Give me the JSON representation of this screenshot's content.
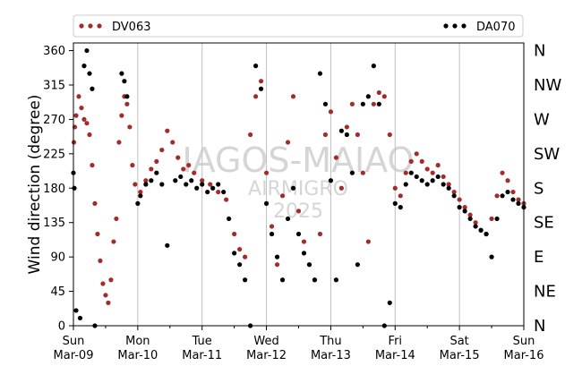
{
  "chart_data": {
    "type": "scatter",
    "title": "",
    "xlabel": "",
    "ylabel": "Wind direction (degree)",
    "ylim": [
      0,
      370
    ],
    "yticks": [
      0,
      45,
      90,
      135,
      180,
      225,
      270,
      315,
      360
    ],
    "xlim": [
      "2025-03-09",
      "2025-03-16"
    ],
    "xticks": [
      {
        "day": "Sun",
        "date": "Mar-09"
      },
      {
        "day": "Mon",
        "date": "Mar-10"
      },
      {
        "day": "Tue",
        "date": "Mar-11"
      },
      {
        "day": "Wed",
        "date": "Mar-12"
      },
      {
        "day": "Thu",
        "date": "Mar-13"
      },
      {
        "day": "Fri",
        "date": "Mar-14"
      },
      {
        "day": "Sat",
        "date": "Mar-15"
      },
      {
        "day": "Sun",
        "date": "Mar-16"
      }
    ],
    "compass_labels": [
      {
        "label": "N",
        "value": 0
      },
      {
        "label": "NE",
        "value": 45
      },
      {
        "label": "E",
        "value": 90
      },
      {
        "label": "SE",
        "value": 135
      },
      {
        "label": "S",
        "value": 180
      },
      {
        "label": "SW",
        "value": 225
      },
      {
        "label": "W",
        "value": 270
      },
      {
        "label": "NW",
        "value": 315
      },
      {
        "label": "N",
        "value": 360
      }
    ],
    "grid": "vertical",
    "legend_position": "top",
    "watermark": [
      "IAGOS-MAIAO",
      "AIRMIGRO",
      "2025"
    ],
    "series": [
      {
        "name": "DV063",
        "color": "#a52a2a",
        "points": [
          [
            "2025-03-09T00:10",
            240
          ],
          [
            "2025-03-09T00:30",
            260
          ],
          [
            "2025-03-09T01:00",
            275
          ],
          [
            "2025-03-09T02:00",
            300
          ],
          [
            "2025-03-09T03:00",
            285
          ],
          [
            "2025-03-09T04:00",
            270
          ],
          [
            "2025-03-09T05:00",
            265
          ],
          [
            "2025-03-09T06:00",
            250
          ],
          [
            "2025-03-09T07:00",
            210
          ],
          [
            "2025-03-09T08:00",
            160
          ],
          [
            "2025-03-09T09:00",
            120
          ],
          [
            "2025-03-09T10:00",
            85
          ],
          [
            "2025-03-09T11:00",
            55
          ],
          [
            "2025-03-09T12:00",
            40
          ],
          [
            "2025-03-09T13:00",
            30
          ],
          [
            "2025-03-09T14:00",
            60
          ],
          [
            "2025-03-09T15:00",
            110
          ],
          [
            "2025-03-09T16:00",
            140
          ],
          [
            "2025-03-09T17:00",
            240
          ],
          [
            "2025-03-09T18:00",
            275
          ],
          [
            "2025-03-09T19:00",
            300
          ],
          [
            "2025-03-09T20:00",
            290
          ],
          [
            "2025-03-09T21:00",
            260
          ],
          [
            "2025-03-09T22:00",
            210
          ],
          [
            "2025-03-09T23:00",
            185
          ],
          [
            "2025-03-10T01:00",
            175
          ],
          [
            "2025-03-10T03:00",
            190
          ],
          [
            "2025-03-10T05:00",
            205
          ],
          [
            "2025-03-10T07:00",
            215
          ],
          [
            "2025-03-10T09:00",
            230
          ],
          [
            "2025-03-10T11:00",
            255
          ],
          [
            "2025-03-10T13:00",
            240
          ],
          [
            "2025-03-10T15:00",
            220
          ],
          [
            "2025-03-10T17:00",
            205
          ],
          [
            "2025-03-10T19:00",
            210
          ],
          [
            "2025-03-10T21:00",
            200
          ],
          [
            "2025-03-11T00:00",
            190
          ],
          [
            "2025-03-11T03:00",
            185
          ],
          [
            "2025-03-11T06:00",
            175
          ],
          [
            "2025-03-11T09:00",
            165
          ],
          [
            "2025-03-11T12:00",
            120
          ],
          [
            "2025-03-11T14:00",
            100
          ],
          [
            "2025-03-11T16:00",
            90
          ],
          [
            "2025-03-11T18:00",
            250
          ],
          [
            "2025-03-11T20:00",
            300
          ],
          [
            "2025-03-11T22:00",
            320
          ],
          [
            "2025-03-12T00:00",
            200
          ],
          [
            "2025-03-12T02:00",
            130
          ],
          [
            "2025-03-12T04:00",
            80
          ],
          [
            "2025-03-12T06:00",
            170
          ],
          [
            "2025-03-12T08:00",
            240
          ],
          [
            "2025-03-12T10:00",
            300
          ],
          [
            "2025-03-12T12:00",
            150
          ],
          [
            "2025-03-12T14:00",
            110
          ],
          [
            "2025-03-12T16:00",
            80
          ],
          [
            "2025-03-12T18:00",
            60
          ],
          [
            "2025-03-12T20:00",
            120
          ],
          [
            "2025-03-12T22:00",
            250
          ],
          [
            "2025-03-13T00:00",
            280
          ],
          [
            "2025-03-13T02:00",
            220
          ],
          [
            "2025-03-13T04:00",
            180
          ],
          [
            "2025-03-13T06:00",
            260
          ],
          [
            "2025-03-13T08:00",
            290
          ],
          [
            "2025-03-13T10:00",
            250
          ],
          [
            "2025-03-13T12:00",
            200
          ],
          [
            "2025-03-13T14:00",
            110
          ],
          [
            "2025-03-13T16:00",
            290
          ],
          [
            "2025-03-13T18:00",
            305
          ],
          [
            "2025-03-13T20:00",
            300
          ],
          [
            "2025-03-13T22:00",
            250
          ],
          [
            "2025-03-14T00:00",
            180
          ],
          [
            "2025-03-14T02:00",
            170
          ],
          [
            "2025-03-14T04:00",
            200
          ],
          [
            "2025-03-14T06:00",
            215
          ],
          [
            "2025-03-14T08:00",
            225
          ],
          [
            "2025-03-14T10:00",
            215
          ],
          [
            "2025-03-14T12:00",
            205
          ],
          [
            "2025-03-14T14:00",
            200
          ],
          [
            "2025-03-14T16:00",
            210
          ],
          [
            "2025-03-14T18:00",
            195
          ],
          [
            "2025-03-14T20:00",
            185
          ],
          [
            "2025-03-14T22:00",
            175
          ],
          [
            "2025-03-15T00:00",
            165
          ],
          [
            "2025-03-15T02:00",
            155
          ],
          [
            "2025-03-15T04:00",
            145
          ],
          [
            "2025-03-15T06:00",
            135
          ],
          [
            "2025-03-15T08:00",
            125
          ],
          [
            "2025-03-15T10:00",
            120
          ],
          [
            "2025-03-15T12:00",
            140
          ],
          [
            "2025-03-15T14:00",
            170
          ],
          [
            "2025-03-15T16:00",
            200
          ],
          [
            "2025-03-15T18:00",
            190
          ],
          [
            "2025-03-15T20:00",
            175
          ],
          [
            "2025-03-15T22:00",
            165
          ],
          [
            "2025-03-16T00:00",
            160
          ]
        ]
      },
      {
        "name": "DA070",
        "color": "#000000",
        "points": [
          [
            "2025-03-09T00:00",
            200
          ],
          [
            "2025-03-09T00:20",
            180
          ],
          [
            "2025-03-09T01:00",
            20
          ],
          [
            "2025-03-09T02:30",
            10
          ],
          [
            "2025-03-09T04:00",
            340
          ],
          [
            "2025-03-09T05:00",
            360
          ],
          [
            "2025-03-09T06:00",
            330
          ],
          [
            "2025-03-09T07:00",
            310
          ],
          [
            "2025-03-09T08:00",
            0
          ],
          [
            "2025-03-09T18:00",
            330
          ],
          [
            "2025-03-09T19:00",
            320
          ],
          [
            "2025-03-09T20:00",
            300
          ],
          [
            "2025-03-10T00:00",
            160
          ],
          [
            "2025-03-10T01:00",
            170
          ],
          [
            "2025-03-10T03:00",
            185
          ],
          [
            "2025-03-10T05:00",
            190
          ],
          [
            "2025-03-10T07:00",
            200
          ],
          [
            "2025-03-10T09:00",
            185
          ],
          [
            "2025-03-10T11:00",
            105
          ],
          [
            "2025-03-10T14:00",
            190
          ],
          [
            "2025-03-10T16:00",
            195
          ],
          [
            "2025-03-10T18:00",
            185
          ],
          [
            "2025-03-10T20:00",
            190
          ],
          [
            "2025-03-10T22:00",
            180
          ],
          [
            "2025-03-11T00:00",
            185
          ],
          [
            "2025-03-11T02:00",
            175
          ],
          [
            "2025-03-11T04:00",
            180
          ],
          [
            "2025-03-11T06:00",
            185
          ],
          [
            "2025-03-11T08:00",
            175
          ],
          [
            "2025-03-11T10:00",
            140
          ],
          [
            "2025-03-11T12:00",
            95
          ],
          [
            "2025-03-11T14:00",
            80
          ],
          [
            "2025-03-11T16:00",
            60
          ],
          [
            "2025-03-11T18:00",
            0
          ],
          [
            "2025-03-11T20:00",
            340
          ],
          [
            "2025-03-11T22:00",
            310
          ],
          [
            "2025-03-12T00:00",
            160
          ],
          [
            "2025-03-12T02:00",
            120
          ],
          [
            "2025-03-12T04:00",
            90
          ],
          [
            "2025-03-12T06:00",
            60
          ],
          [
            "2025-03-12T08:00",
            140
          ],
          [
            "2025-03-12T10:00",
            180
          ],
          [
            "2025-03-12T12:00",
            120
          ],
          [
            "2025-03-12T14:00",
            95
          ],
          [
            "2025-03-12T16:00",
            80
          ],
          [
            "2025-03-12T18:00",
            60
          ],
          [
            "2025-03-12T20:00",
            330
          ],
          [
            "2025-03-12T22:00",
            290
          ],
          [
            "2025-03-13T00:00",
            190
          ],
          [
            "2025-03-13T02:00",
            60
          ],
          [
            "2025-03-13T04:00",
            255
          ],
          [
            "2025-03-13T06:00",
            250
          ],
          [
            "2025-03-13T08:00",
            200
          ],
          [
            "2025-03-13T10:00",
            80
          ],
          [
            "2025-03-13T12:00",
            290
          ],
          [
            "2025-03-13T14:00",
            300
          ],
          [
            "2025-03-13T16:00",
            340
          ],
          [
            "2025-03-13T18:00",
            290
          ],
          [
            "2025-03-13T20:00",
            0
          ],
          [
            "2025-03-13T22:00",
            30
          ],
          [
            "2025-03-14T00:00",
            160
          ],
          [
            "2025-03-14T02:00",
            155
          ],
          [
            "2025-03-14T04:00",
            185
          ],
          [
            "2025-03-14T06:00",
            200
          ],
          [
            "2025-03-14T08:00",
            195
          ],
          [
            "2025-03-14T10:00",
            190
          ],
          [
            "2025-03-14T12:00",
            185
          ],
          [
            "2025-03-14T14:00",
            190
          ],
          [
            "2025-03-14T16:00",
            195
          ],
          [
            "2025-03-14T18:00",
            185
          ],
          [
            "2025-03-14T20:00",
            180
          ],
          [
            "2025-03-14T22:00",
            170
          ],
          [
            "2025-03-15T00:00",
            155
          ],
          [
            "2025-03-15T02:00",
            150
          ],
          [
            "2025-03-15T04:00",
            140
          ],
          [
            "2025-03-15T06:00",
            130
          ],
          [
            "2025-03-15T08:00",
            125
          ],
          [
            "2025-03-15T10:00",
            120
          ],
          [
            "2025-03-15T12:00",
            90
          ],
          [
            "2025-03-15T14:00",
            140
          ],
          [
            "2025-03-15T16:00",
            170
          ],
          [
            "2025-03-15T18:00",
            175
          ],
          [
            "2025-03-15T20:00",
            165
          ],
          [
            "2025-03-15T22:00",
            160
          ],
          [
            "2025-03-16T00:00",
            155
          ]
        ]
      }
    ]
  }
}
